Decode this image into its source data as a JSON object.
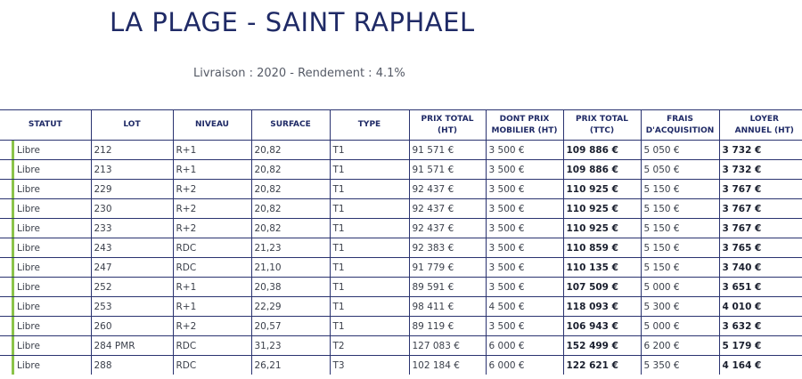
{
  "header": {
    "title": "LA PLAGE - SAINT RAPHAEL",
    "subtitle": "Livraison : 2020 - Rendement : 4.1%"
  },
  "table": {
    "columns": [
      [
        "STATUT"
      ],
      [
        "LOT"
      ],
      [
        "NIVEAU"
      ],
      [
        "SURFACE"
      ],
      [
        "TYPE"
      ],
      [
        "PRIX TOTAL",
        "(HT)"
      ],
      [
        "DONT PRIX",
        "MOBILIER (HT)"
      ],
      [
        "PRIX TOTAL",
        "(TTC)"
      ],
      [
        "FRAIS",
        "D'ACQUISITION"
      ],
      [
        "LOYER",
        "ANNUEL (HT)"
      ]
    ],
    "status_color": "#8bc34a",
    "rows": [
      [
        "Libre",
        "212",
        "R+1",
        "20,82",
        "T1",
        "91 571 €",
        "3 500 €",
        "109 886 €",
        "5 050 €",
        "3 732 €"
      ],
      [
        "Libre",
        "213",
        "R+1",
        "20,82",
        "T1",
        "91 571 €",
        "3 500 €",
        "109 886 €",
        "5 050 €",
        "3 732 €"
      ],
      [
        "Libre",
        "229",
        "R+2",
        "20,82",
        "T1",
        "92 437 €",
        "3 500 €",
        "110 925 €",
        "5 150 €",
        "3 767 €"
      ],
      [
        "Libre",
        "230",
        "R+2",
        "20,82",
        "T1",
        "92 437 €",
        "3 500 €",
        "110 925 €",
        "5 150 €",
        "3 767 €"
      ],
      [
        "Libre",
        "233",
        "R+2",
        "20,82",
        "T1",
        "92 437 €",
        "3 500 €",
        "110 925 €",
        "5 150 €",
        "3 767 €"
      ],
      [
        "Libre",
        "243",
        "RDC",
        "21,23",
        "T1",
        "92 383 €",
        "3 500 €",
        "110 859 €",
        "5 150 €",
        "3 765 €"
      ],
      [
        "Libre",
        "247",
        "RDC",
        "21,10",
        "T1",
        "91 779 €",
        "3 500 €",
        "110 135 €",
        "5 150 €",
        "3 740 €"
      ],
      [
        "Libre",
        "252",
        "R+1",
        "20,38",
        "T1",
        "89 591 €",
        "3 500 €",
        "107 509 €",
        "5 000 €",
        "3 651 €"
      ],
      [
        "Libre",
        "253",
        "R+1",
        "22,29",
        "T1",
        "98 411 €",
        "4 500 €",
        "118 093 €",
        "5 300 €",
        "4 010 €"
      ],
      [
        "Libre",
        "260",
        "R+2",
        "20,57",
        "T1",
        "89 119 €",
        "3 500 €",
        "106 943 €",
        "5 000 €",
        "3 632 €"
      ],
      [
        "Libre",
        "284 PMR",
        "RDC",
        "31,23",
        "T2",
        "127 083 €",
        "6 000 €",
        "152 499 €",
        "6 200 €",
        "5 179 €"
      ],
      [
        "Libre",
        "288",
        "RDC",
        "26,21",
        "T3",
        "102 184 €",
        "6 000 €",
        "122 621 €",
        "5 350 €",
        "4 164 €"
      ]
    ]
  }
}
